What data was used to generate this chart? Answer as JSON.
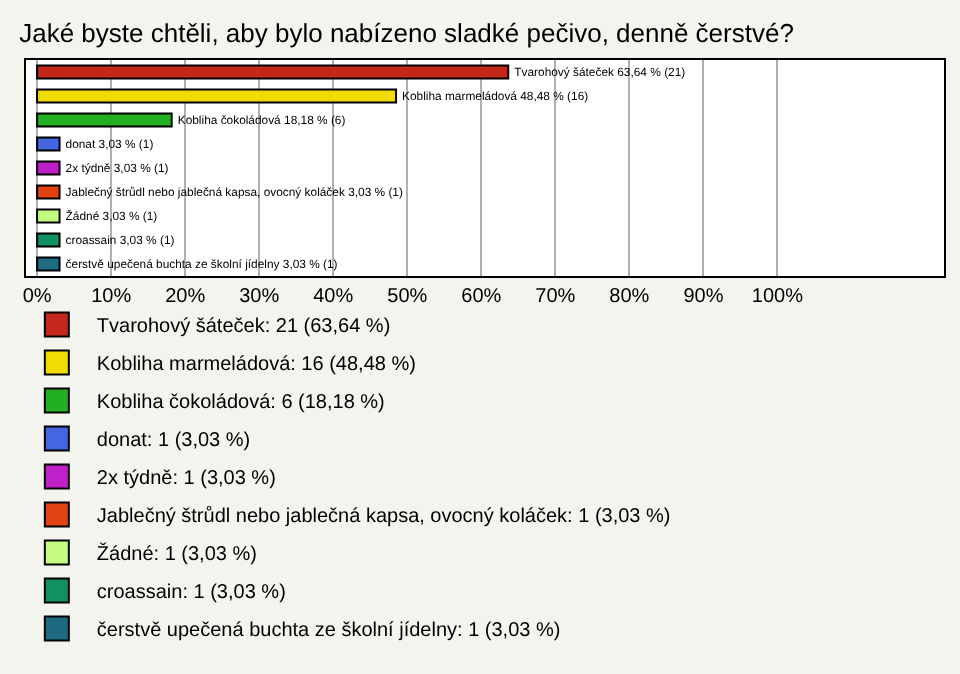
{
  "chart_data": {
    "type": "bar",
    "orientation": "horizontal",
    "title": "Jaké byste chtěli, aby bylo nabízeno sladké pečivo, denně čerstvé?",
    "categories": [
      null,
      null,
      null,
      null,
      null,
      null,
      null,
      null,
      null
    ],
    "series": [
      {
        "name": "Tvarohový šáteček: 21 (63,64 %)",
        "color": "#c4281c",
        "values": [
          63.64,
          null,
          null,
          null,
          null,
          null,
          null,
          null,
          null
        ],
        "value_labels": [
          "Tvarohový šáteček 63,64 % (21)",
          null,
          null,
          null,
          null,
          null,
          null,
          null,
          null
        ]
      },
      {
        "name": "Kobliha marmeládová: 16 (48,48 %)",
        "color": "#f0dc00",
        "values": [
          null,
          48.48,
          null,
          null,
          null,
          null,
          null,
          null,
          null
        ],
        "value_labels": [
          null,
          "Kobliha marmeládová 48,48 % (16)",
          null,
          null,
          null,
          null,
          null,
          null,
          null
        ]
      },
      {
        "name": "Kobliha čokoládová: 6 (18,18 %)",
        "color": "#22b022",
        "values": [
          null,
          null,
          18.18,
          null,
          null,
          null,
          null,
          null,
          null
        ],
        "value_labels": [
          null,
          null,
          "Kobliha čokoládová 18,18 % (6)",
          null,
          null,
          null,
          null,
          null,
          null
        ]
      },
      {
        "name": "donat: 1 (3,03 %)",
        "color": "#4466e0",
        "values": [
          null,
          null,
          null,
          3.03,
          null,
          null,
          null,
          null,
          null
        ],
        "value_labels": [
          null,
          null,
          null,
          "donat 3,03 % (1)",
          null,
          null,
          null,
          null,
          null
        ]
      },
      {
        "name": "2x týdně: 1 (3,03 %)",
        "color": "#c020c8",
        "values": [
          null,
          null,
          null,
          null,
          3.03,
          null,
          null,
          null,
          null
        ],
        "value_labels": [
          null,
          null,
          null,
          null,
          "2x týdně 3,03 % (1)",
          null,
          null,
          null,
          null
        ]
      },
      {
        "name": "Jablečný štrůdl nebo jablečná kapsa, ovocný koláček: 1 (3,03 %)",
        "color": "#e04414",
        "values": [
          null,
          null,
          null,
          null,
          null,
          3.03,
          null,
          null,
          null
        ],
        "value_labels": [
          null,
          null,
          null,
          null,
          null,
          "Jablečný štrůdl nebo jablečná kapsa, ovocný koláček 3,03 % (1)",
          null,
          null,
          null
        ]
      },
      {
        "name": "Žádné: 1 (3,03 %)",
        "color": "#c4fc80",
        "values": [
          null,
          null,
          null,
          null,
          null,
          null,
          3.03,
          null,
          null
        ],
        "value_labels": [
          null,
          null,
          null,
          null,
          null,
          null,
          "Žádné 3,03 % (1)",
          null,
          null
        ]
      },
      {
        "name": "croassain: 1 (3,03 %)",
        "color": "#129060",
        "values": [
          null,
          null,
          null,
          null,
          null,
          null,
          null,
          3.03,
          null
        ],
        "value_labels": [
          null,
          null,
          null,
          null,
          null,
          null,
          null,
          "croassain 3,03 % (1)",
          null
        ]
      },
      {
        "name": "čerstvě upečená buchta ze školní jídelny: 1 (3,03 %)",
        "color": "#1e6a80",
        "values": [
          null,
          null,
          null,
          null,
          null,
          null,
          null,
          null,
          3.03
        ],
        "value_labels": [
          null,
          null,
          null,
          null,
          null,
          null,
          null,
          null,
          "čerstvě upečená buchta ze školní jídelny 3,03 % (1)"
        ]
      }
    ],
    "xlim": [
      -1.5,
      122.5
    ],
    "xticks": [
      {
        "value": 0,
        "label": "0%"
      },
      {
        "value": 10,
        "label": "10%"
      },
      {
        "value": 20,
        "label": "20%"
      },
      {
        "value": 30,
        "label": "30%"
      },
      {
        "value": 40,
        "label": "40%"
      },
      {
        "value": 50,
        "label": "50%"
      },
      {
        "value": 60,
        "label": "60%"
      },
      {
        "value": 70,
        "label": "70%"
      },
      {
        "value": 80,
        "label": "80%"
      },
      {
        "value": 90,
        "label": "90%"
      },
      {
        "value": 100,
        "label": "100%"
      }
    ],
    "grid": "x",
    "legend": "bottom"
  }
}
